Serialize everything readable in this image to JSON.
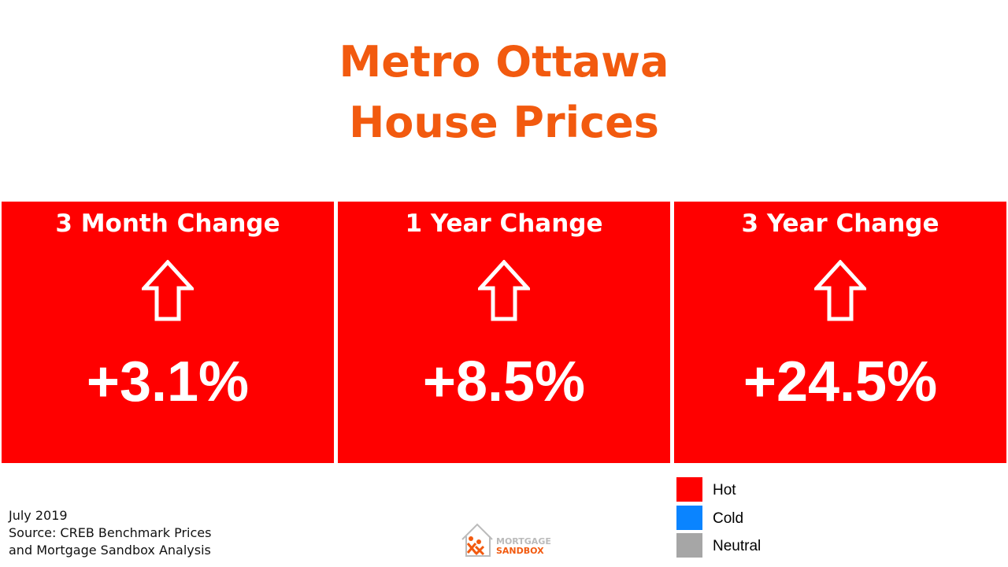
{
  "header": {
    "title_lines": [
      "Metro Ottawa",
      "House Prices"
    ],
    "color": "#f25a0f"
  },
  "cards": [
    {
      "label": "3 Month Change",
      "value": "+3.1%",
      "color": "#ff0000"
    },
    {
      "label": "1 Year Change",
      "value": "+8.5%",
      "color": "#ff0000"
    },
    {
      "label": "3 Year Change",
      "value": "+24.5%",
      "color": "#ff0000"
    }
  ],
  "legend": [
    {
      "name": "Hot",
      "color": "#ff0000"
    },
    {
      "name": "Cold",
      "color": "#0a84ff"
    },
    {
      "name": "Neutral",
      "color": "#a6a6a6"
    }
  ],
  "footer": {
    "lines": [
      "July 2019",
      "Source: CREB Benchmark Prices",
      "and Mortgage Sandbox Analysis"
    ]
  },
  "logo": {
    "lines": [
      "MORTGAGE",
      "SANDBOX"
    ]
  }
}
